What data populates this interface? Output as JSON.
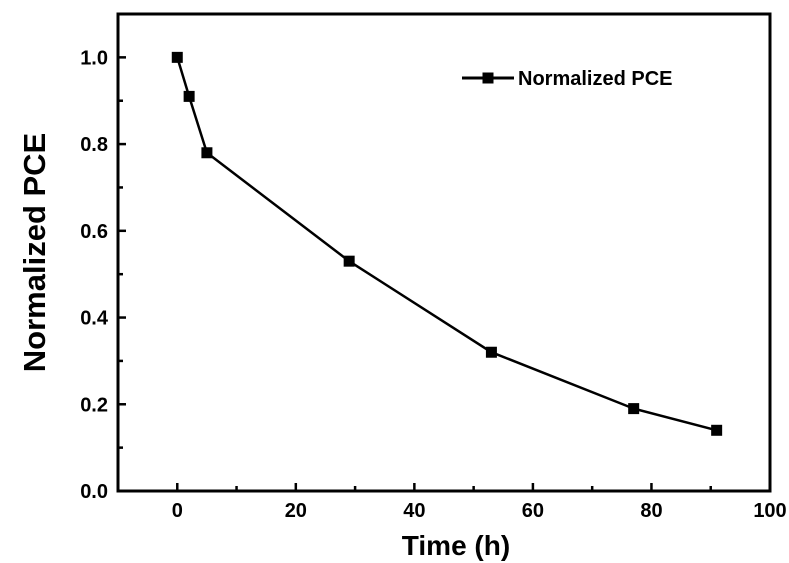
{
  "chart_data": {
    "type": "line",
    "title": "",
    "xlabel": "Time (h)",
    "ylabel": "Normalized PCE",
    "xlim": [
      -10,
      100
    ],
    "ylim": [
      0.0,
      1.1
    ],
    "xticks": [
      0,
      20,
      40,
      60,
      80,
      100
    ],
    "xtick_labels": [
      "0",
      "20",
      "40",
      "60",
      "80",
      "100"
    ],
    "yticks": [
      0.0,
      0.2,
      0.4,
      0.6,
      0.8,
      1.0
    ],
    "ytick_labels": [
      "0.0",
      "0.2",
      "0.4",
      "0.6",
      "0.8",
      "1.0"
    ],
    "grid": false,
    "legend_position": "top-right",
    "series": [
      {
        "name": "Normalized PCE",
        "marker": "square",
        "color": "#000000",
        "x": [
          0,
          2,
          5,
          29,
          53,
          77,
          91
        ],
        "values": [
          1.0,
          0.91,
          0.78,
          0.53,
          0.32,
          0.19,
          0.14
        ]
      }
    ]
  }
}
